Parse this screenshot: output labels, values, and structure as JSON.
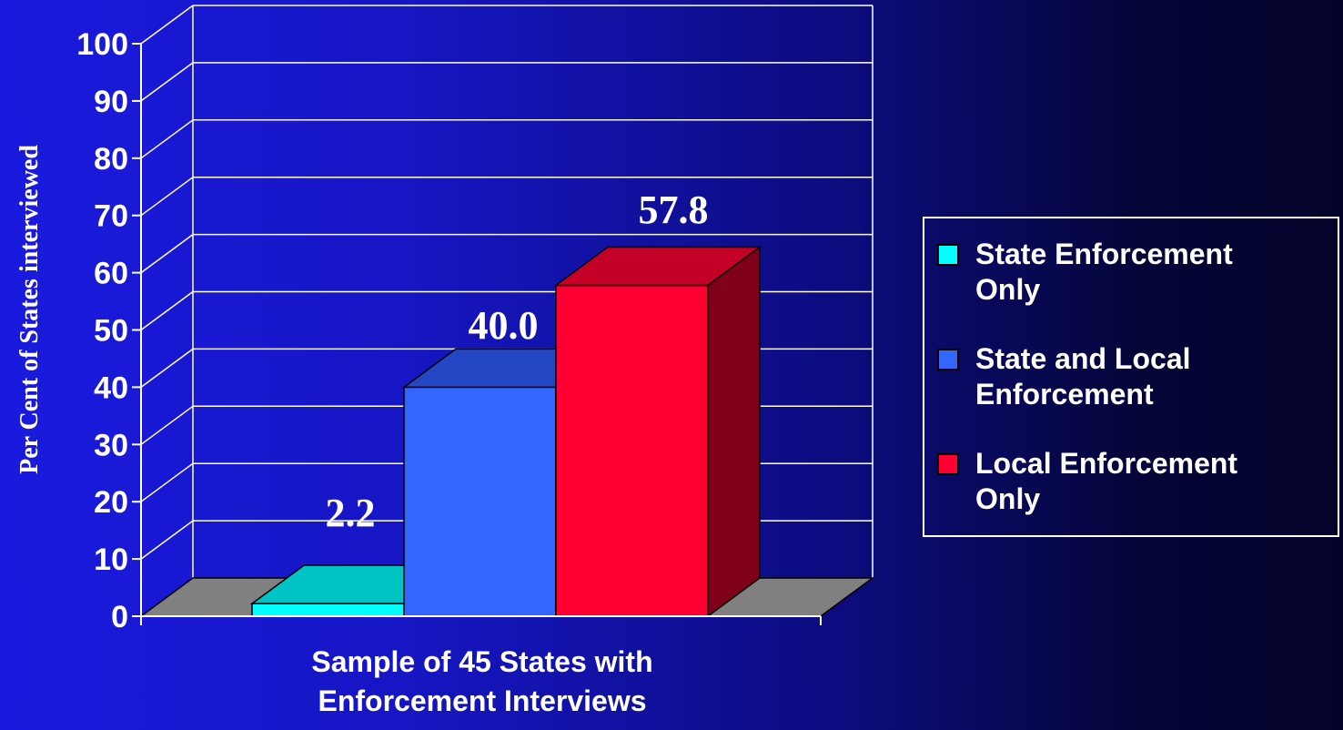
{
  "chart_data": {
    "type": "bar",
    "title": "",
    "ylabel": "Per Cent of States interviewed",
    "xlabel_lines": [
      "Sample of 45 States with",
      "Enforcement Interviews"
    ],
    "ylim": [
      0,
      100
    ],
    "yticks": [
      0,
      10,
      20,
      30,
      40,
      50,
      60,
      70,
      80,
      90,
      100
    ],
    "three_d": true,
    "grid": true,
    "legend_position": "right",
    "series": [
      {
        "name": "State Enforcement Only",
        "value": 2.2,
        "label": "2.2",
        "color": "#00ffff",
        "top_color": "#00c4c4",
        "side_color": "#008c8c"
      },
      {
        "name": "State and Local Enforcement",
        "value": 40.0,
        "label": "40.0",
        "color": "#3366ff",
        "top_color": "#2448c4",
        "side_color": "#19338c"
      },
      {
        "name": "Local Enforcement Only",
        "value": 57.8,
        "label": "57.8",
        "color": "#ff0033",
        "top_color": "#c40026",
        "side_color": "#800019"
      }
    ],
    "legend": {
      "items": [
        {
          "label_lines": [
            "State Enforcement",
            "Only"
          ],
          "color": "#00ffff"
        },
        {
          "label_lines": [
            "State and Local",
            "Enforcement"
          ],
          "color": "#3366ff"
        },
        {
          "label_lines": [
            "Local Enforcement",
            "Only"
          ],
          "color": "#ff0033"
        }
      ]
    },
    "colors": {
      "floor": "#808080",
      "grid": "#ffffff",
      "axis": "#ffffff",
      "text": "#ffffff"
    }
  }
}
